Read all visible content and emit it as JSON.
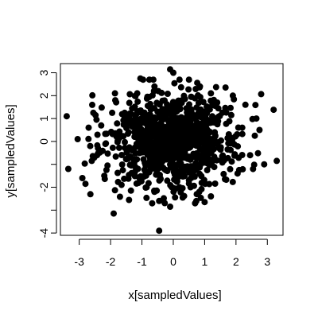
{
  "chart_data": {
    "type": "scatter",
    "title": "",
    "xlabel": "x[sampledValues]",
    "ylabel": "y[sampledValues]",
    "xlim": [
      -3.6,
      3.5
    ],
    "ylim": [
      -4.1,
      3.4
    ],
    "x_ticks": [
      -3,
      -2,
      -1,
      0,
      1,
      2,
      3
    ],
    "x_tick_labels": [
      "-3",
      "-2",
      "-1",
      "0",
      "1",
      "2",
      "3"
    ],
    "y_ticks": [
      -4,
      -3,
      -2,
      -1,
      0,
      1,
      2,
      3
    ],
    "y_tick_labels": [
      "-4",
      "",
      "-2",
      "",
      "0",
      "1",
      "2",
      "3"
    ],
    "grid": false,
    "legend": "none",
    "marker_color": "#000000",
    "point_count_approx": 1000,
    "distribution": "bivariate standard normal, independent, mean 0, sd 1",
    "points": [
      [
        -3.4,
        1.1
      ],
      [
        -3.35,
        -1.2
      ],
      [
        -2.9,
        -1.6
      ],
      [
        -2.8,
        -1.85
      ],
      [
        -3.05,
        0.1
      ],
      [
        -2.7,
        0.6
      ],
      [
        -2.55,
        1.25
      ],
      [
        -2.45,
        0.95
      ],
      [
        -2.6,
        -0.85
      ],
      [
        -2.4,
        -0.3
      ],
      [
        -2.3,
        0.7
      ],
      [
        -2.2,
        -1.5
      ],
      [
        -1.9,
        -3.15
      ],
      [
        -1.85,
        1.8
      ],
      [
        -0.45,
        -3.9
      ],
      [
        -0.45,
        -2.6
      ],
      [
        -0.1,
        3.15
      ],
      [
        0.0,
        3.0
      ],
      [
        -0.1,
        -2.85
      ],
      [
        0.3,
        -2.45
      ],
      [
        1.0,
        -2.65
      ],
      [
        1.2,
        -2.4
      ],
      [
        3.3,
        -0.85
      ],
      [
        2.9,
        -1.0
      ],
      [
        2.65,
        1.0
      ],
      [
        2.75,
        0.5
      ],
      [
        2.6,
        0.25
      ],
      [
        2.3,
        1.6
      ],
      [
        1.9,
        2.0
      ],
      [
        1.4,
        1.7
      ],
      [
        1.2,
        2.1
      ],
      [
        0.85,
        2.4
      ],
      [
        0.5,
        2.7
      ],
      [
        -0.6,
        2.4
      ],
      [
        -1.05,
        2.75
      ],
      [
        -1.15,
        2.1
      ],
      [
        -1.55,
        1.25
      ],
      [
        -2.1,
        -1.05
      ],
      [
        -1.65,
        -1.9
      ],
      [
        -1.35,
        -2.15
      ],
      [
        -0.85,
        -2.0
      ],
      [
        -0.6,
        -2.2
      ],
      [
        0.55,
        -2.0
      ],
      [
        1.65,
        -1.65
      ],
      [
        2.1,
        -1.25
      ],
      [
        2.45,
        -0.6
      ],
      [
        0.75,
        -2.3
      ],
      [
        -2.65,
        -0.2
      ],
      [
        1.85,
        1.15
      ],
      [
        2.2,
        0.6
      ],
      [
        2.05,
        -1.4
      ],
      [
        -1.95,
        1.25
      ]
    ]
  }
}
